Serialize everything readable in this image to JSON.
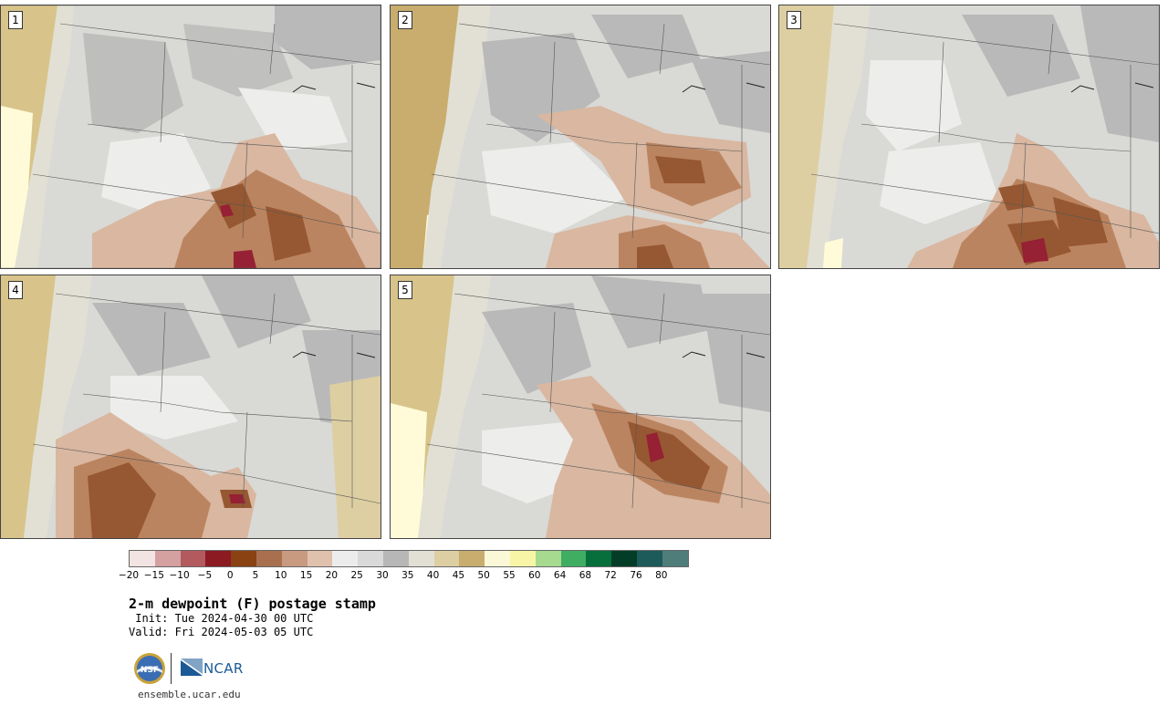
{
  "panels": [
    {
      "label": "1"
    },
    {
      "label": "2"
    },
    {
      "label": "3"
    },
    {
      "label": "4"
    },
    {
      "label": "5"
    }
  ],
  "colorbar": {
    "ticks": [
      "−20",
      "−15",
      "−10",
      "−5",
      "0",
      "5",
      "10",
      "15",
      "20",
      "25",
      "30",
      "35",
      "40",
      "45",
      "50",
      "55",
      "60",
      "64",
      "68",
      "72",
      "76",
      "80"
    ],
    "colors": [
      "#f2e4e2",
      "#d4a0a0",
      "#b35a5f",
      "#8b1a22",
      "#8a4213",
      "#a8704e",
      "#c89a80",
      "#dfc1ae",
      "#ececec",
      "#d9d9d9",
      "#b7b7b7",
      "#e2e0d4",
      "#ddcfa2",
      "#c9ad6e",
      "#fbf8d8",
      "#f8f6a6",
      "#a6da8e",
      "#3fae62",
      "#076f3c",
      "#033d28",
      "#1d5a5a",
      "#4e7d7a"
    ]
  },
  "title": "2-m dewpoint (F) postage stamp",
  "init": " Init: Tue 2024-04-30 00 UTC",
  "valid": "Valid: Fri 2024-05-03 05 UTC",
  "logos": {
    "nsf": "NSF",
    "ncar": "NCAR"
  },
  "site": "ensemble.ucar.edu",
  "palette": {
    "ocean": "#d8c48a",
    "ocean_edge": "#c4a560",
    "land": "#d9d9d6",
    "light": "#ededec",
    "mid": "#b9b9b9",
    "brown_light": "#d9b7a0",
    "brown_mid": "#bb8460",
    "brown_dark": "#965832",
    "red": "#962034",
    "yellow": "#fffbd8"
  }
}
